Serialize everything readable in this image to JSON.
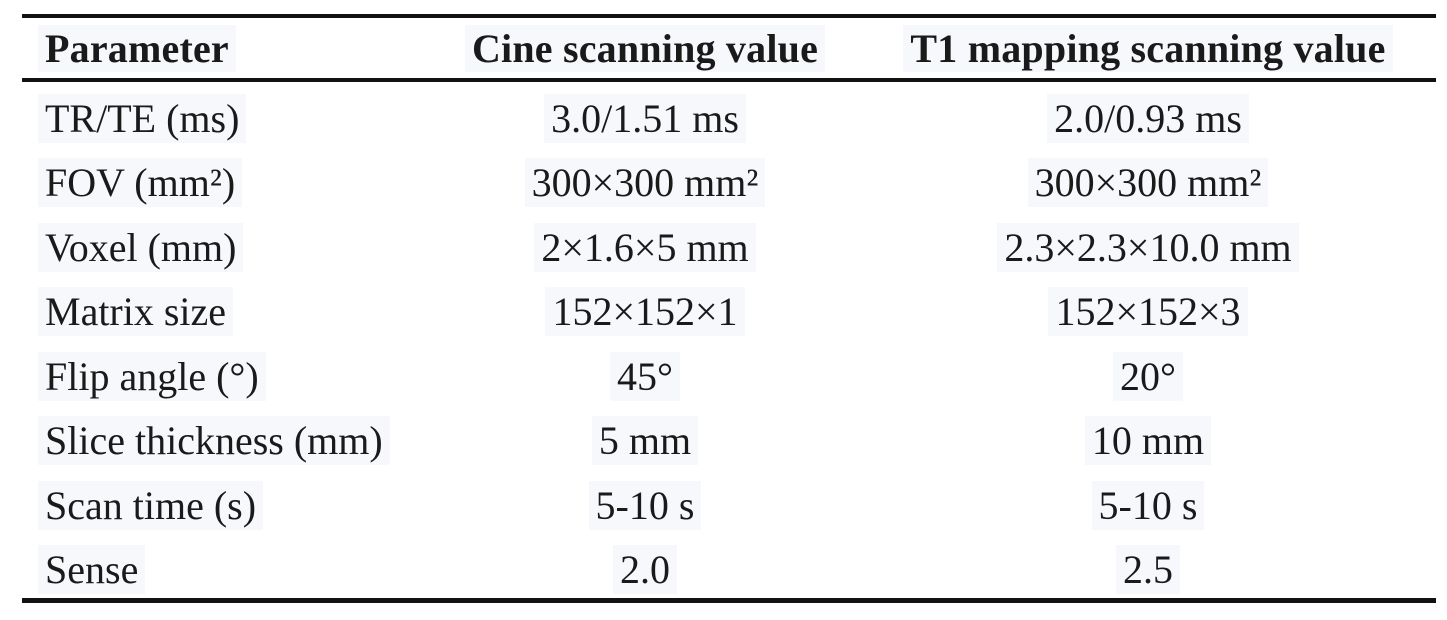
{
  "table": {
    "columns": [
      {
        "label": "Parameter"
      },
      {
        "label": "Cine scanning value"
      },
      {
        "label": "T1 mapping scanning value"
      }
    ],
    "rows": [
      {
        "parameter": "TR/TE (ms)",
        "cine": "3.0/1.51 ms",
        "t1": "2.0/0.93 ms"
      },
      {
        "parameter": "FOV (mm²)",
        "cine": "300×300 mm²",
        "t1": "300×300 mm²"
      },
      {
        "parameter": "Voxel (mm)",
        "cine": "2×1.6×5 mm",
        "t1": "2.3×2.3×10.0 mm"
      },
      {
        "parameter": "Matrix size",
        "cine": "152×152×1",
        "t1": "152×152×3"
      },
      {
        "parameter": "Flip angle (°)",
        "cine": "45°",
        "t1": "20°"
      },
      {
        "parameter": "Slice thickness (mm)",
        "cine": "5 mm",
        "t1": "10 mm"
      },
      {
        "parameter": "Scan time (s)",
        "cine": "5-10 s",
        "t1": "5-10 s"
      },
      {
        "parameter": "Sense",
        "cine": "2.0",
        "t1": "2.5"
      }
    ],
    "colors": {
      "text": "#1a1a1a",
      "rule": "#121212",
      "highlight": "#f6f8fb",
      "background": "#ffffff"
    }
  }
}
